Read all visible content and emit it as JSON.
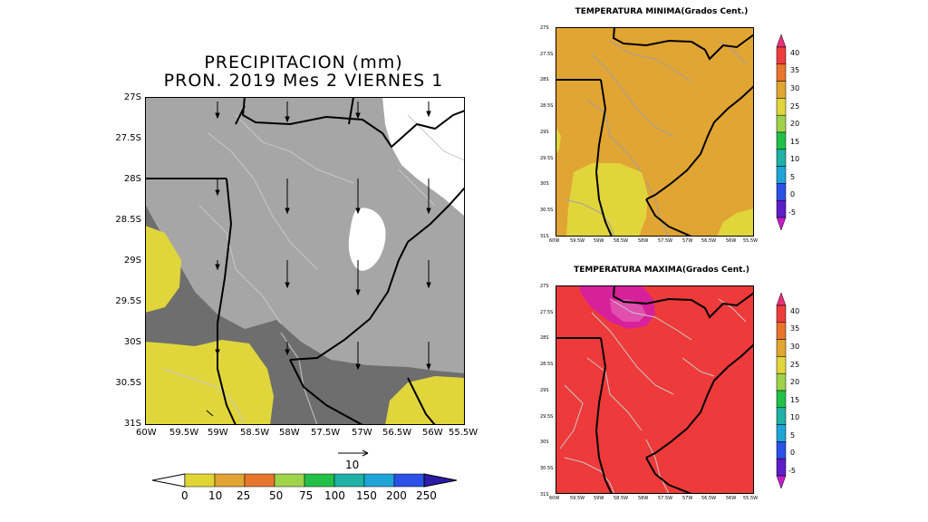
{
  "precip_panel": {
    "title_line1": "PRECIPITACION (mm)",
    "title_line2": "PRON. 2019 Mes 2 VIERNES 1",
    "y_ticks": [
      "27S",
      "27.5S",
      "28S",
      "28.5S",
      "29S",
      "29.5S",
      "30S",
      "30.5S",
      "31S"
    ],
    "x_ticks": [
      "60W",
      "59.5W",
      "59W",
      "58.5W",
      "58W",
      "57.5W",
      "57W",
      "56.5W",
      "56W",
      "55.5W"
    ],
    "vector_ref_label": "10",
    "colorbar": {
      "labels": [
        "0",
        "10",
        "25",
        "50",
        "75",
        "100",
        "150",
        "200",
        "250"
      ],
      "colors": [
        "#e1d535",
        "#e0a534",
        "#e8752d",
        "#9fd44a",
        "#23c048",
        "#1fb0a6",
        "#1fa4d8",
        "#2b51e6",
        "#2c1ca8"
      ]
    },
    "fill_colors": {
      "light_gray": "#a6a6a6",
      "dark_gray": "#6e6e6e",
      "yellow": "#e0d63c",
      "white": "#ffffff"
    }
  },
  "tmin_panel": {
    "title": "TEMPERATURA MINIMA(Grados Cent.)",
    "y_ticks": [
      "27S",
      "27.5S",
      "28S",
      "28.5S",
      "29S",
      "29.5S",
      "30S",
      "30.5S",
      "31S"
    ],
    "x_ticks": [
      "60W",
      "59.5W",
      "59W",
      "58.5W",
      "58W",
      "57.5W",
      "57W",
      "56.5W",
      "56W",
      "55.5W"
    ],
    "fill_colors": {
      "orange": "#e1a534",
      "yellow": "#e1d53c"
    }
  },
  "tmax_panel": {
    "title": "TEMPERATURA MAXIMA(Grados Cent.)",
    "y_ticks": [
      "27S",
      "27.5S",
      "28S",
      "28.5S",
      "29S",
      "29.5S",
      "30S",
      "30.5S",
      "31S"
    ],
    "x_ticks": [
      "60W",
      "59.5W",
      "59W",
      "58.5W",
      "58W",
      "57.5W",
      "57W",
      "56.5W",
      "56W",
      "55.5W"
    ],
    "fill_colors": {
      "red": "#ee3a3a",
      "magenta": "#d6219b"
    }
  },
  "temp_colorbar": {
    "labels": [
      "40",
      "35",
      "30",
      "25",
      "20",
      "15",
      "10",
      "5",
      "0",
      "-5"
    ],
    "colors": [
      "#e8317a",
      "#ee3c3c",
      "#e8742d",
      "#e1a534",
      "#e1d53c",
      "#9ed24a",
      "#23c048",
      "#1fb0a6",
      "#1fa4d8",
      "#2b51e6",
      "#5c1ec8",
      "#c21ec8"
    ]
  }
}
